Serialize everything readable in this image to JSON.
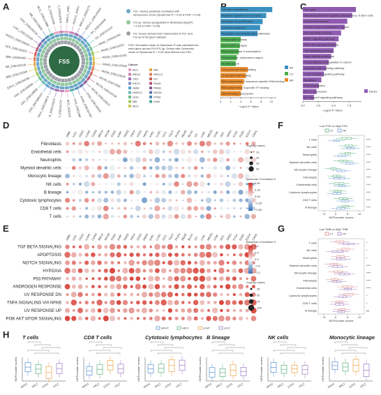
{
  "panels": {
    "A": "A",
    "B": "B",
    "C": "C",
    "D": "D",
    "E": "E",
    "F": "F",
    "G": "G",
    "H": "H"
  },
  "panel_a": {
    "center_label": "FSS",
    "legend": [
      {
        "key": "FS+",
        "text": "FS+: Genes positively correlated with senescence score (Spearman R > 0.25 & FDR < 0.05)",
        "color": "#6aa8c8"
      },
      {
        "key": "FS-up",
        "text": "FS-up: Genes upregulated in fibroblasts (log2FC > 0.25 & FDR < 0.05)",
        "color": "#8dc89a"
      },
      {
        "key": "FS",
        "text": "FS: Genes derived from intersection of FS+ and FS-up of the given dataset",
        "color": "#9aa0a6"
      }
    ],
    "fss_note": "FSS: Geometric mean of Spearman R was calculated for each gene across FS+/FS-up. Genes with Geometric mean of Spearman R > 0.25 were filtered into FSS.",
    "cancer_legend_title": "Cancer",
    "cancers": [
      "BCC",
      "BRCA",
      "CRC",
      "ESCC",
      "GBM",
      "HNSCC",
      "LIHC",
      "MB",
      "MCC",
      "NM",
      "NSCLC",
      "OV",
      "PAAD",
      "PRAD",
      "SKCM",
      "STAD",
      "UVM"
    ],
    "cancer_colors": [
      "#e6a0c4",
      "#c77db0",
      "#a06ab4",
      "#7f8cc8",
      "#5aa0d0",
      "#66b8b8",
      "#6cc08c",
      "#9cc85c",
      "#d0c850",
      "#e0a848",
      "#e07c58",
      "#d0605c",
      "#b4547c",
      "#8c5c9c",
      "#6070b0",
      "#4c8cb8",
      "#4ca8a0"
    ],
    "sample_labels": [
      "NSCLC_GSE131907",
      "NSCLC_GSE148071",
      "NSCLC_GSE117570",
      "NSCLC_GSE143423",
      "OV_GSE154600",
      "OV_GSE151214",
      "PAAD_CRA001160",
      "PAAD_GSE111672",
      "PRAD_GSE141445",
      "PRAD_GSE137829",
      "SKCM_GSE115978",
      "SKCM_GSE72056",
      "SKCM_GSE123139",
      "SKCM_GSE120575",
      "STAD_GSE134520",
      "STAD_GSE167297",
      "UVM_GSE139829",
      "BCC_GSE123813",
      "BRCA_GSE114727",
      "BRCA_GSE143423",
      "BRCA_GSE148673",
      "CRC_EMTAB8107",
      "CRC_GSE139555",
      "CRC_GSE108989",
      "ESCC_GSE160269",
      "GBM_GSE131928",
      "GBM_GSE102130",
      "GBM_GSE84465",
      "HNSCC_GSE103322",
      "HNSCC_GSE139324",
      "LIHC_GSE125449",
      "LIHC_GSE140228",
      "MB_GSE119926",
      "MCC_GSE117988",
      "NM_GSE132465",
      "NM_GSE115978"
    ]
  },
  "panel_b": {
    "xlabel": "−Log10 P−Value",
    "legend": [
      "BP",
      "CC",
      "MF"
    ],
    "legend_colors": [
      "#3a8fc0",
      "#4caf50",
      "#e98a2a"
    ],
    "ticks": [
      "0",
      "2",
      "4",
      "6",
      "8",
      "10"
    ],
    "terms": [
      {
        "label": "Cell fate commitment",
        "value": 10.2,
        "cat": 0
      },
      {
        "label": "Negative regulation of cell cycle",
        "value": 9.0,
        "cat": 0
      },
      {
        "label": "Epithelial cell proliferation",
        "value": 8.3,
        "cat": 0
      },
      {
        "label": "Gland development",
        "value": 7.8,
        "cat": 0
      },
      {
        "label": "Regulation of epithelial cell proliferation",
        "value": 7.3,
        "cat": 0
      },
      {
        "label": "Postsynaptic density",
        "value": 4.0,
        "cat": 1
      },
      {
        "label": "Asymmetric synapse",
        "value": 3.8,
        "cat": 1
      },
      {
        "label": "RNA polymerase II transcription",
        "value": 3.6,
        "cat": 1
      },
      {
        "label": "Chromosome, centromeric region",
        "value": 3.2,
        "cat": 1
      },
      {
        "label": "Nuclear speck",
        "value": 3.0,
        "cat": 1
      },
      {
        "label": "Core promoter DNA binding",
        "value": 5.4,
        "cat": 2
      },
      {
        "label": "Chromatin DNA binding",
        "value": 5.0,
        "cat": 2
      },
      {
        "label": "RNA polymerase II sequence-specific DNA binding",
        "value": 4.6,
        "cat": 2
      },
      {
        "label": "RNA polymerase II-specific TF binding",
        "value": 4.3,
        "cat": 2
      },
      {
        "label": "DNA-binding transcription",
        "value": 4.0,
        "cat": 2
      }
    ]
  },
  "panel_c": {
    "xlabel": "−Log10 P−Value",
    "legend": "KEGG",
    "ticks": [
      "0.0",
      "2.5",
      "5.0",
      "7.5"
    ],
    "terms": [
      {
        "label": "Cell cycle",
        "value": 8.6
      },
      {
        "label": "Signaling pathways regulating pluripotency of stem cells",
        "value": 8.0
      },
      {
        "label": "Cellular senescence",
        "value": 7.2
      },
      {
        "label": "Central carbon metabolism in cancer",
        "value": 6.8
      },
      {
        "label": "p53 signaling pathway",
        "value": 6.2
      },
      {
        "label": "MAPK signaling pathway",
        "value": 5.8
      },
      {
        "label": "PI3K−Akt signaling pathway",
        "value": 5.4
      },
      {
        "label": "TNF signaling pathway",
        "value": 5.0
      },
      {
        "label": "Hippo signaling pathway",
        "value": 4.6
      },
      {
        "label": "Transcriptional misregulation in cancer",
        "value": 4.2
      },
      {
        "label": "Cytosolic DNA−sensing pathway",
        "value": 3.8
      },
      {
        "label": "T cell receptor signaling pathway",
        "value": 3.4
      },
      {
        "label": "Apoptosis",
        "value": 3.0
      },
      {
        "label": "RNA degradation",
        "value": 2.6
      },
      {
        "label": "PD−L1 expression",
        "value": 2.2
      },
      {
        "label": "NF−kappa B signaling pathway",
        "value": 1.8
      }
    ]
  },
  "panel_d": {
    "columns": [
      "GBM",
      "LGG",
      "CESC",
      "LUAD",
      "COAD",
      "BRCA",
      "SKCM",
      "STAD",
      "KIRP",
      "PRAD",
      "THCA",
      "UCEC",
      "HNSC",
      "KIRC",
      "LUSC",
      "UCS",
      "TGCT",
      "PCPG",
      "READ",
      "BLCA",
      "OV",
      "LIHC",
      "MESO",
      "UVM",
      "ACC",
      "SARC",
      "KICH",
      "DLBC",
      "ESCA",
      "CHOL"
    ],
    "rows": [
      "Fibroblasts",
      "Endothelial cells",
      "Neutrophils",
      "Myeloid dendritic cells",
      "Monocytic lineage",
      "NK cells",
      "B lineage",
      "Cytotoxic lymphocytes",
      "CD8 T cells",
      "T cells"
    ],
    "size_legend_title": "−log10(p value)",
    "size_legend": [
      "10",
      "20",
      "30",
      "40"
    ],
    "color_legend_title": "Spearman Correlation R",
    "color_ticks": [
      "0.50",
      "0.25",
      "0.00",
      "−0.25",
      "−0.50"
    ]
  },
  "panel_e": {
    "columns": [
      "GBM",
      "LGG",
      "CESC",
      "LUAD",
      "COAD",
      "BRCA",
      "SKCM",
      "STAD",
      "KIRP",
      "PRAD",
      "THCA",
      "UCEC",
      "HNSC",
      "KIRC",
      "LUSC",
      "UCS",
      "TGCT",
      "PCPG",
      "READ",
      "BLCA",
      "OV",
      "LIHC",
      "MESO",
      "UVM",
      "ACC",
      "SARC",
      "KICH",
      "DLBC",
      "ESCA",
      "CHOL"
    ],
    "rows": [
      "TGF BETA SIGNALING",
      "APOPTOSIS",
      "NOTCH SIGNALING",
      "HYPOXIA",
      "P53 PATHWAY",
      "ANDROGEN RESPONSE",
      "UV RESPONSE DN",
      "TNFA SIGNALING VIA NFKB",
      "UV RESPONSE UP",
      "PI3K AKT MTOR SIGNALING"
    ],
    "color_legend_title": "Spearman Correlation R",
    "color_ticks": [
      "1.0",
      "0.5",
      "0.0",
      "−0.5",
      "−1.0"
    ],
    "size_legend_title": "−log10(p value)",
    "size_legend": [
      "25",
      "50",
      "75",
      "100"
    ]
  },
  "panel_f": {
    "title": "Low FSS vs High FSS",
    "legend": [
      "LF",
      "HF"
    ],
    "legend_colors": [
      "#5bb07a",
      "#6a9ad0"
    ],
    "rows": [
      "T cells",
      "NK cells",
      "Neutrophils",
      "Myeloid dendritic cells",
      "Monocytic lineage",
      "Fibroblasts",
      "Endothelial cells",
      "Cytotoxic lymphocytes",
      "CD8 T cells",
      "B lineage"
    ],
    "sig": [
      "****",
      "****",
      "****",
      "****",
      "****",
      "****",
      "****",
      "****",
      "****",
      "****"
    ],
    "xlabel": "MCPcounter scores",
    "ticks": [
      "−5",
      "0",
      "5",
      "10"
    ]
  },
  "panel_g": {
    "title": "Low TMB vs High TMB",
    "legend": [
      "LT",
      "HT"
    ],
    "legend_colors": [
      "#d88a8a",
      "#9a7ac0"
    ],
    "rows": [
      "T cells",
      "NK cells",
      "Neutrophils",
      "Myeloid dendritic cells",
      "Monocytic lineage",
      "Fibroblasts",
      "Endothelial cells",
      "Cytotoxic lymphocytes",
      "CD8 T cells",
      "B lineage"
    ],
    "sig": [
      "*",
      "*",
      "*",
      "****",
      "****",
      "****",
      "****",
      "*",
      "*",
      "ns"
    ],
    "xlabel": "MCPcounter scores",
    "ticks": [
      "−5",
      "0",
      "5",
      "10"
    ]
  },
  "panel_h": {
    "legend": [
      "HFHT",
      "HFLT",
      "LFHT",
      "LFLT"
    ],
    "legend_colors": [
      "#5a8ed0",
      "#5bb07a",
      "#e8a040",
      "#9a7ac0"
    ],
    "ylabel": "MCPcounter scores",
    "groups": [
      "HFHT",
      "HFLT",
      "LFHT",
      "LFLT"
    ],
    "subplots": [
      {
        "title": "T cells"
      },
      {
        "title": "CD8 T cells"
      },
      {
        "title": "Cytotoxic lymphocytes"
      },
      {
        "title": "B lineage"
      },
      {
        "title": "NK cells"
      },
      {
        "title": "Monocytic lineage"
      }
    ]
  }
}
